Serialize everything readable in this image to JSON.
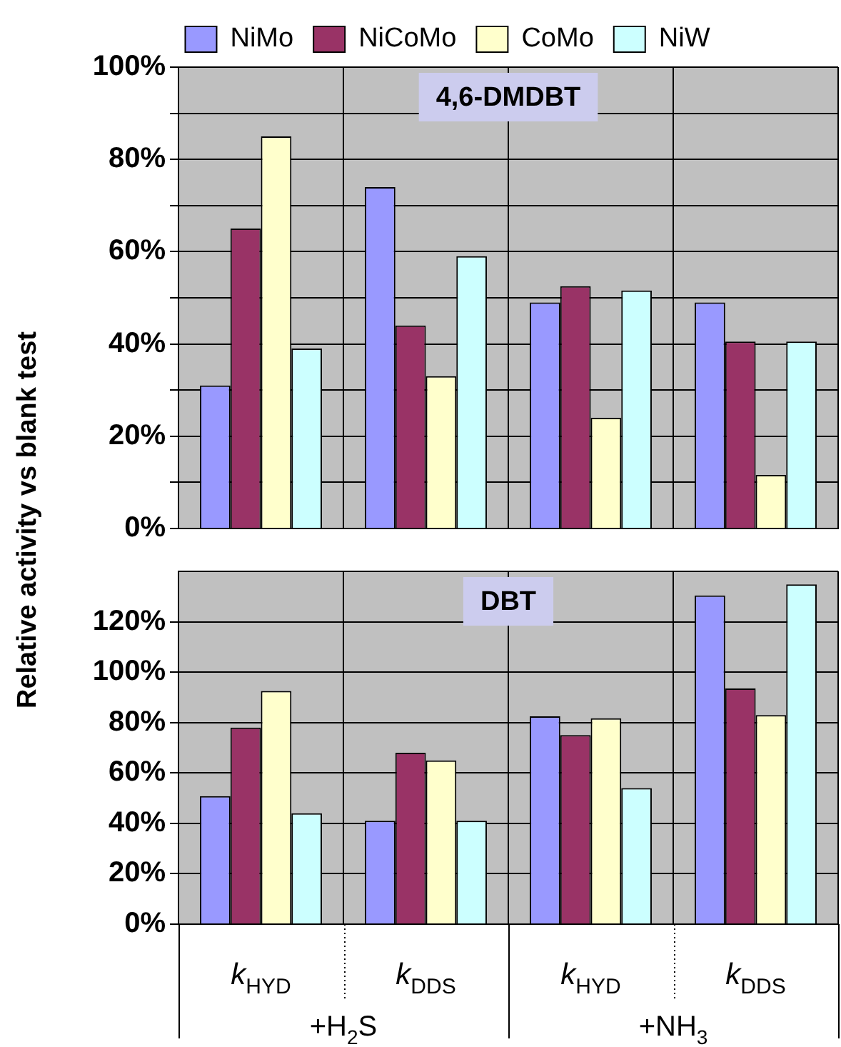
{
  "chart_data": [
    {
      "type": "bar",
      "title": "4,6-DMDBT",
      "ylabel": "Relative activity vs blank test",
      "categories": [
        null,
        null,
        null,
        null
      ],
      "series": [
        {
          "name": "NiMo",
          "color": "#9999ff",
          "values": [
            31,
            74,
            49,
            49
          ]
        },
        {
          "name": "NiCoMo",
          "color": "#993366",
          "values": [
            65,
            44,
            52.5,
            40.5
          ]
        },
        {
          "name": "CoMo",
          "color": "#ffffcc",
          "values": [
            85,
            33,
            24,
            11.6
          ]
        },
        {
          "name": "NiW",
          "color": "#ccffff",
          "values": [
            39,
            59,
            51.6,
            40.5
          ]
        }
      ],
      "ylim": [
        0,
        100
      ],
      "yticks": [
        {
          "value": 0,
          "label": "0%"
        },
        {
          "value": 10,
          "label": null
        },
        {
          "value": 20,
          "label": "20%"
        },
        {
          "value": 30,
          "label": null
        },
        {
          "value": 40,
          "label": "40%"
        },
        {
          "value": 50,
          "label": null
        },
        {
          "value": 60,
          "label": "60%"
        },
        {
          "value": 70,
          "label": null
        },
        {
          "value": 80,
          "label": "80%"
        },
        {
          "value": 90,
          "label": null
        },
        {
          "value": 100,
          "label": "100%"
        }
      ],
      "grid": true,
      "legend": "top",
      "tick_labels": "y"
    },
    {
      "type": "bar",
      "title": "DBT",
      "categories": [
        "k$_{HYD}$",
        "k$_{DDS}$",
        "k$_{HYD}$",
        "k$_{DDS}$"
      ],
      "series": [
        {
          "color": "#9999ff",
          "values": [
            50.8,
            41,
            82.5,
            130.4
          ]
        },
        {
          "color": "#993366",
          "values": [
            78,
            68,
            75,
            93.5
          ]
        },
        {
          "color": "#ffffcc",
          "values": [
            92.5,
            65,
            81.7,
            83
          ]
        },
        {
          "color": "#ccffff",
          "values": [
            44,
            41,
            54,
            134.8
          ]
        }
      ],
      "ylim": [
        0,
        140
      ],
      "yticks": [
        {
          "value": 0,
          "label": "0%"
        },
        {
          "value": 20,
          "label": "20%"
        },
        {
          "value": 40,
          "label": "40%"
        },
        {
          "value": 60,
          "label": "60%"
        },
        {
          "value": 80,
          "label": "80%"
        },
        {
          "value": 100,
          "label": "100%"
        },
        {
          "value": 120,
          "label": "120%"
        }
      ],
      "grid": true,
      "annotations": [
        "+H$_{2}$S",
        "+NH$_{3}$"
      ]
    }
  ]
}
